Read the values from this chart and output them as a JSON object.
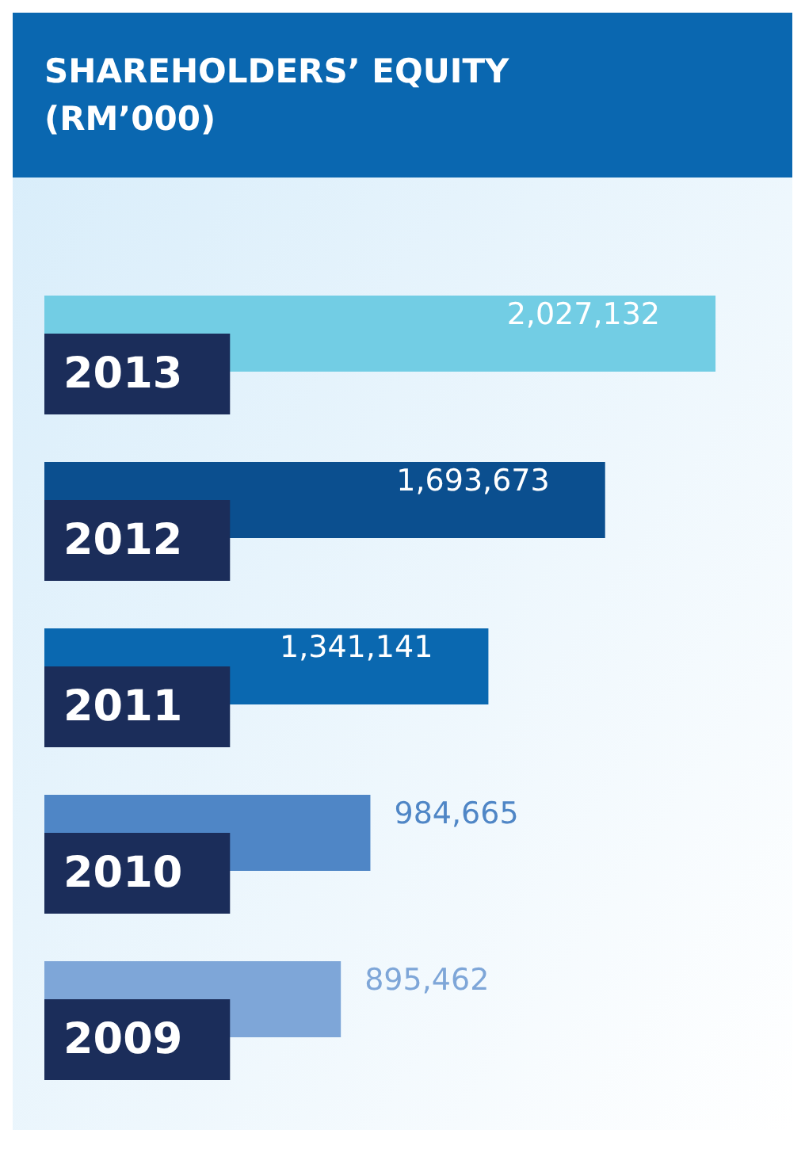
{
  "chart_data": {
    "type": "bar",
    "orientation": "horizontal",
    "title": "SHAREHOLDERS’ EQUITY\n(RM’000)",
    "categories": [
      "2013",
      "2012",
      "2011",
      "2010",
      "2009"
    ],
    "values": [
      2027132,
      1693673,
      1341141,
      984665,
      895462
    ],
    "colors": [
      "#72cde4",
      "#0b4f8f",
      "#0a68b0",
      "#4f86c6",
      "#7ea6d8"
    ],
    "value_labels": [
      "2,027,132",
      "1,693,673",
      "1,341,141",
      "984,665",
      "895,462"
    ]
  }
}
